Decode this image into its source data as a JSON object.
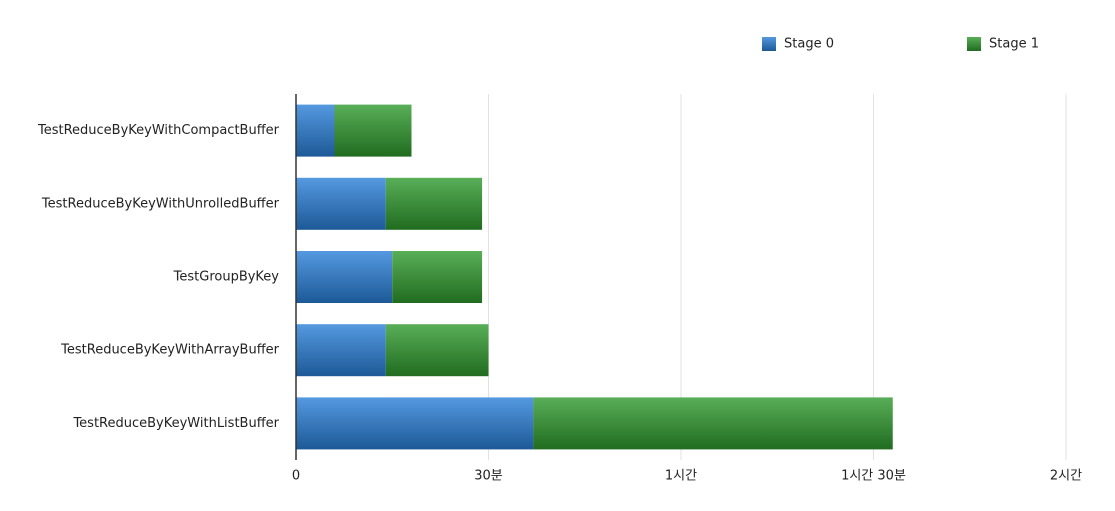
{
  "chart_data": {
    "type": "stacked-barh",
    "categories": [
      "TestReduceByKeyWithCompactBuffer",
      "TestReduceByKeyWithUnrolledBuffer",
      "TestGroupByKey",
      "TestReduceByKeyWithArrayBuffer",
      "TestReduceByKeyWithListBuffer"
    ],
    "series": [
      {
        "name": "Stage 0",
        "color": "#2a7fd8",
        "values": [
          6,
          14,
          15,
          14,
          37
        ]
      },
      {
        "name": "Stage 1",
        "color": "#2f9a2e",
        "values": [
          12,
          15,
          14,
          16,
          56
        ]
      }
    ],
    "xlim": [
      0,
      120
    ],
    "xticks": [
      0,
      {
        "value": 30,
        "label": "30분"
      },
      {
        "value": 60,
        "label": "1시간"
      },
      {
        "value": 90,
        "label": "1시간 30분"
      },
      {
        "value": 120,
        "label": "2시간"
      }
    ],
    "grid": true,
    "legend": "top-right"
  }
}
